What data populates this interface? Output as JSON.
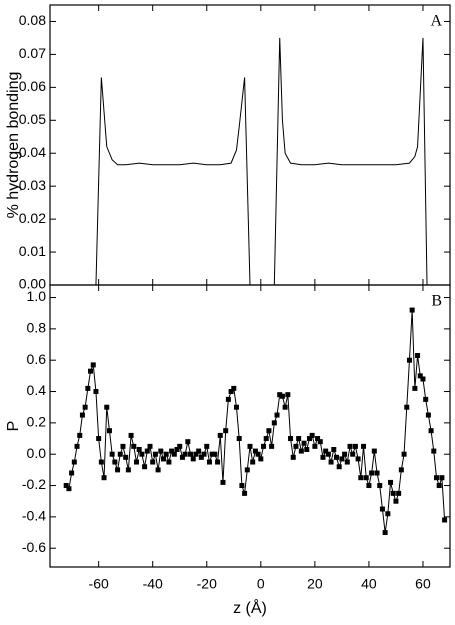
{
  "chart_data": [
    {
      "type": "line",
      "panel_label": "A",
      "ylabel": "% hydrogen bonding",
      "color": "#000000",
      "x": [
        -61,
        -59,
        -57,
        -55,
        -53,
        -50,
        -45,
        -40,
        -35,
        -30,
        -25,
        -20,
        -15,
        -11,
        -9,
        -8,
        -6,
        -4,
        0,
        5,
        7,
        8,
        9,
        11,
        15,
        20,
        25,
        30,
        35,
        40,
        45,
        50,
        55,
        57,
        58,
        60,
        61.5
      ],
      "values": [
        0,
        0.063,
        0.042,
        0.038,
        0.0365,
        0.0365,
        0.037,
        0.0365,
        0.0365,
        0.0365,
        0.037,
        0.0365,
        0.0365,
        0.037,
        0.041,
        0.048,
        0.063,
        0,
        null,
        0,
        0.075,
        0.05,
        0.04,
        0.037,
        0.0365,
        0.0365,
        0.037,
        0.0365,
        0.0365,
        0.0365,
        0.0365,
        0.0365,
        0.037,
        0.039,
        0.042,
        0.075,
        0
      ],
      "xlim": [
        -78,
        70
      ],
      "xticks": [
        -60,
        -40,
        -20,
        0,
        20,
        40,
        60
      ],
      "ylim": [
        0,
        0.085
      ],
      "yticks": [
        {
          "value": 0,
          "label": "0.00"
        },
        {
          "value": 0.01,
          "label": "0.01"
        },
        {
          "value": 0.02,
          "label": "0.02"
        },
        {
          "value": 0.03,
          "label": "0.03"
        },
        {
          "value": 0.04,
          "label": "0.04"
        },
        {
          "value": 0.05,
          "label": "0.05"
        },
        {
          "value": 0.06,
          "label": "0.06"
        },
        {
          "value": 0.07,
          "label": "0.07"
        },
        {
          "value": 0.08,
          "label": "0.08"
        }
      ]
    },
    {
      "type": "line",
      "markers": true,
      "panel_label": "B",
      "ylabel": "P",
      "xlabel": "z (Å)",
      "color": "#000000",
      "x": [
        -72,
        -71,
        -70,
        -69,
        -68,
        -67,
        -66,
        -65,
        -64,
        -63,
        -62,
        -61,
        -60,
        -59,
        -58,
        -57,
        -56,
        -55,
        -54,
        -53,
        -52,
        -51,
        -50,
        -49,
        -48,
        -47,
        -46,
        -45,
        -44,
        -43,
        -42,
        -41,
        -40,
        -39,
        -38,
        -37,
        -36,
        -35,
        -34,
        -33,
        -32,
        -31,
        -30,
        -29,
        -28,
        -27,
        -26,
        -25,
        -24,
        -23,
        -22,
        -21,
        -20,
        -19,
        -18,
        -17,
        -16,
        -15,
        -14,
        -13,
        -12,
        -11,
        -10,
        -9,
        -8,
        -7,
        -6,
        -5,
        -4,
        -3,
        -2,
        -1,
        0,
        1,
        2,
        3,
        4,
        5,
        6,
        7,
        8,
        9,
        10,
        11,
        12,
        13,
        14,
        15,
        16,
        17,
        18,
        19,
        20,
        21,
        22,
        23,
        24,
        25,
        26,
        27,
        28,
        29,
        30,
        31,
        32,
        33,
        34,
        35,
        36,
        37,
        38,
        39,
        40,
        41,
        42,
        43,
        44,
        45,
        46,
        47,
        48,
        49,
        50,
        51,
        52,
        53,
        54,
        55,
        56,
        57,
        58,
        59,
        60,
        61,
        62,
        63,
        64,
        65,
        66,
        67,
        68
      ],
      "values": [
        -0.2,
        -0.22,
        -0.12,
        -0.05,
        0.05,
        0.12,
        0.25,
        0.3,
        0.42,
        0.53,
        0.57,
        0.4,
        0.1,
        -0.05,
        -0.15,
        0.3,
        0.15,
        0.0,
        -0.05,
        -0.1,
        0.0,
        0.05,
        -0.02,
        -0.1,
        0.12,
        0.05,
        -0.05,
        0.03,
        0.0,
        -0.08,
        0.02,
        0.05,
        -0.05,
        0.0,
        -0.1,
        0.02,
        -0.03,
        0.0,
        -0.05,
        0.02,
        0.0,
        0.03,
        0.05,
        -0.02,
        0.0,
        0.08,
        0.0,
        -0.03,
        0.0,
        0.02,
        -0.02,
        0.0,
        0.05,
        -0.05,
        0.0,
        0.0,
        -0.05,
        0.12,
        -0.18,
        0.15,
        0.35,
        0.4,
        0.42,
        0.3,
        0.1,
        -0.2,
        -0.25,
        -0.1,
        0.05,
        -0.05,
        0.02,
        0.0,
        -0.03,
        0.05,
        0.1,
        0.15,
        0.05,
        0.2,
        0.25,
        0.38,
        0.37,
        0.3,
        0.38,
        0.1,
        -0.02,
        0.05,
        0.1,
        0.02,
        0.07,
        0.03,
        0.1,
        0.12,
        0.05,
        0.1,
        0.08,
        -0.02,
        0.02,
        0.0,
        -0.05,
        0.03,
        -0.02,
        -0.08,
        -0.03,
        0.0,
        -0.05,
        0.05,
        0.0,
        0.05,
        -0.03,
        -0.15,
        0.05,
        -0.15,
        -0.2,
        -0.12,
        0.02,
        -0.12,
        -0.2,
        -0.35,
        -0.5,
        -0.38,
        -0.18,
        -0.25,
        -0.3,
        -0.25,
        -0.1,
        0.0,
        0.3,
        0.6,
        0.92,
        0.42,
        0.63,
        0.5,
        0.48,
        0.35,
        0.25,
        0.15,
        0.02,
        -0.15,
        -0.2,
        -0.15,
        -0.42
      ],
      "xlim": [
        -78,
        70
      ],
      "xticks": [
        -60,
        -40,
        -20,
        0,
        20,
        40,
        60
      ],
      "ylim": [
        -0.72,
        1.08
      ],
      "yticks": [
        {
          "value": -0.6,
          "label": "-0.6"
        },
        -0.4,
        -0.2,
        {
          "value": 0,
          "label": "0.0"
        },
        0.2,
        0.4,
        0.6,
        0.8,
        {
          "value": 1,
          "label": "1.0"
        }
      ]
    }
  ]
}
